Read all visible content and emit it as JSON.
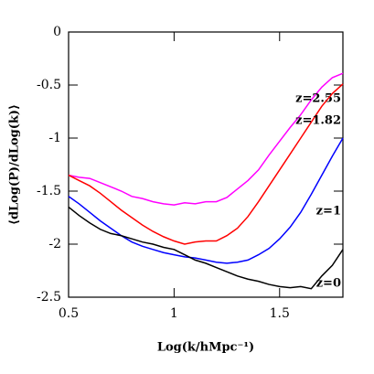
{
  "chart_data": {
    "type": "line",
    "xlabel": "Log(k/hMpc⁻¹)",
    "ylabel": "⟨dLog(P)/dLog(k)⟩",
    "x": [
      0.5,
      0.55,
      0.6,
      0.65,
      0.7,
      0.75,
      0.8,
      0.85,
      0.9,
      0.95,
      1.0,
      1.05,
      1.1,
      1.15,
      1.2,
      1.25,
      1.3,
      1.35,
      1.4,
      1.45,
      1.5,
      1.55,
      1.6,
      1.65,
      1.7,
      1.75,
      1.8
    ],
    "xlim": [
      0.5,
      1.8
    ],
    "xticks": [
      0.5,
      1,
      1.5
    ],
    "ylim": [
      -2.5,
      0
    ],
    "yticks": [
      -2.5,
      -2,
      -1.5,
      -1,
      -0.5,
      0
    ],
    "series": [
      {
        "name": "z=2.55",
        "color": "#ff00ff",
        "values": [
          -1.35,
          -1.37,
          -1.38,
          -1.42,
          -1.46,
          -1.5,
          -1.55,
          -1.57,
          -1.6,
          -1.62,
          -1.63,
          -1.61,
          -1.62,
          -1.6,
          -1.6,
          -1.56,
          -1.48,
          -1.4,
          -1.3,
          -1.16,
          -1.03,
          -0.9,
          -0.78,
          -0.64,
          -0.52,
          -0.43,
          -0.39
        ]
      },
      {
        "name": "z=1.82",
        "color": "#ff0000",
        "values": [
          -1.35,
          -1.4,
          -1.45,
          -1.52,
          -1.6,
          -1.68,
          -1.75,
          -1.82,
          -1.88,
          -1.93,
          -1.97,
          -2.0,
          -1.98,
          -1.97,
          -1.97,
          -1.92,
          -1.85,
          -1.74,
          -1.6,
          -1.45,
          -1.3,
          -1.15,
          -1.0,
          -0.85,
          -0.7,
          -0.58,
          -0.49
        ]
      },
      {
        "name": "z=1",
        "color": "#0000ff",
        "values": [
          -1.55,
          -1.62,
          -1.7,
          -1.78,
          -1.85,
          -1.92,
          -1.98,
          -2.02,
          -2.05,
          -2.08,
          -2.1,
          -2.12,
          -2.13,
          -2.15,
          -2.17,
          -2.18,
          -2.17,
          -2.15,
          -2.1,
          -2.04,
          -1.95,
          -1.84,
          -1.7,
          -1.53,
          -1.35,
          -1.17,
          -1.0
        ]
      },
      {
        "name": "z=0",
        "color": "#000000",
        "values": [
          -1.65,
          -1.73,
          -1.8,
          -1.86,
          -1.9,
          -1.92,
          -1.95,
          -1.98,
          -2.0,
          -2.03,
          -2.05,
          -2.1,
          -2.15,
          -2.18,
          -2.22,
          -2.26,
          -2.3,
          -2.33,
          -2.35,
          -2.38,
          -2.4,
          -2.41,
          -2.4,
          -2.42,
          -2.3,
          -2.2,
          -2.05
        ]
      }
    ]
  }
}
